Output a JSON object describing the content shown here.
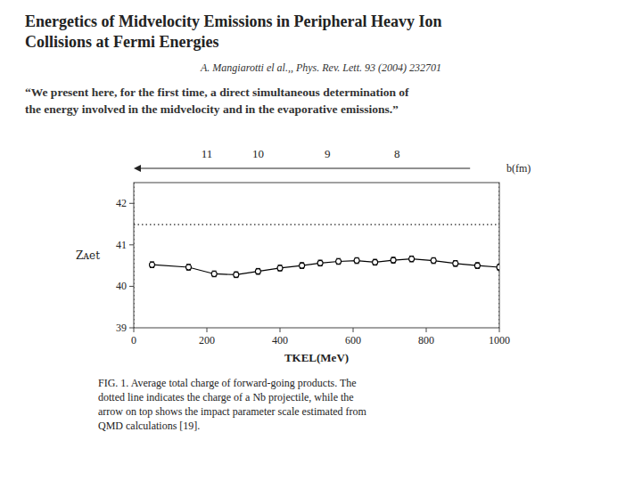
{
  "chart_data": {
    "type": "line",
    "title": "Energetics of Midvelocity Emissions in Peripheral Heavy Ion\nCollisions at Fermi Energies",
    "subtitle": "A. Mangiarotti el al.,, Phys. Rev. Lett. 93 (2004) 232701",
    "annotations": [
      {
        "text": "“We present here, for the first time, a direct simultaneous determination of\nthe energy involved in the midvelocity and in the evaporative emissions.”"
      },
      {
        "text": "FIG. 1.   Average total charge of forward-going products. The\ndotted line indicates the charge of a Nb projectile, while the\narrow on top shows the impact parameter scale estimated from\nQMD calculations [19]."
      }
    ],
    "x": [
      50,
      150,
      220,
      280,
      340,
      400,
      460,
      510,
      560,
      610,
      660,
      710,
      760,
      820,
      880,
      940,
      1000
    ],
    "series": [
      {
        "color": "#000000",
        "marker": "circle",
        "line_style": "solid",
        "values": [
          40.52,
          40.46,
          40.3,
          40.28,
          40.36,
          40.44,
          40.5,
          40.56,
          40.6,
          40.62,
          40.58,
          40.63,
          40.66,
          40.62,
          40.55,
          40.5,
          40.46
        ],
        "errors": [
          0.07,
          0.07,
          0.07,
          0.07,
          0.07,
          0.07,
          0.07,
          0.07,
          0.07,
          0.07,
          0.07,
          0.07,
          0.07,
          0.07,
          0.07,
          0.07,
          0.07
        ]
      }
    ],
    "reference_lines": [
      {
        "axis": "y",
        "value": 41.49,
        "line_style": "dotted"
      },
      {
        "axis": "x",
        "value": 0,
        "line_style": "dotted"
      },
      {
        "axis": "x",
        "value": 1000,
        "line_style": "dotted"
      }
    ],
    "xlabel": "TKEL(MeV)",
    "ylabel": "Zᴀet",
    "xlim": [
      0,
      1000
    ],
    "ylim": [
      39.0,
      42.5
    ],
    "xticks": [
      0,
      200,
      400,
      600,
      800,
      1000
    ],
    "yticks": [
      39,
      40,
      41,
      42
    ],
    "x2label": "b(fm)",
    "x2ticks": [
      {
        "value": 200,
        "label": "11"
      },
      {
        "value": 340,
        "label": "10"
      },
      {
        "value": 530,
        "label": "9"
      },
      {
        "value": 720,
        "label": "8"
      }
    ],
    "grid": false
  }
}
